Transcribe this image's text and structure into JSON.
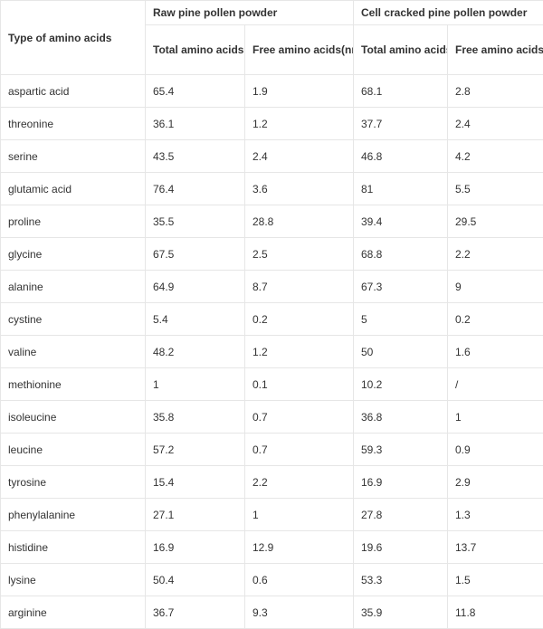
{
  "table": {
    "type_header": "Type of amino acids",
    "groups": [
      "Raw pine pollen powder",
      "Cell cracked pine pollen powder"
    ],
    "subheaders": [
      "Total amino acids(nmol/mg)",
      "Free amino acids(nmol/mg)",
      "Total amino acids(nmol/mg)",
      "Free amino acids(nmol/mg)"
    ],
    "rows": [
      [
        "aspartic acid",
        "65.4",
        "1.9",
        "68.1",
        "2.8"
      ],
      [
        "threonine",
        "36.1",
        "1.2",
        "37.7",
        "2.4"
      ],
      [
        "serine",
        "43.5",
        "2.4",
        "46.8",
        "4.2"
      ],
      [
        "glutamic acid",
        "76.4",
        "3.6",
        "81",
        "5.5"
      ],
      [
        "proline",
        "35.5",
        "28.8",
        "39.4",
        "29.5"
      ],
      [
        "glycine",
        "67.5",
        "2.5",
        "68.8",
        "2.2"
      ],
      [
        "alanine",
        "64.9",
        "8.7",
        "67.3",
        "9"
      ],
      [
        "cystine",
        "5.4",
        "0.2",
        "5",
        "0.2"
      ],
      [
        "valine",
        "48.2",
        "1.2",
        "50",
        "1.6"
      ],
      [
        "methionine",
        "1",
        "0.1",
        "10.2",
        "/"
      ],
      [
        "isoleucine",
        "35.8",
        "0.7",
        "36.8",
        "1"
      ],
      [
        "leucine",
        "57.2",
        "0.7",
        "59.3",
        "0.9"
      ],
      [
        "tyrosine",
        "15.4",
        "2.2",
        "16.9",
        "2.9"
      ],
      [
        "phenylalanine",
        "27.1",
        "1",
        "27.8",
        "1.3"
      ],
      [
        "histidine",
        "16.9",
        "12.9",
        "19.6",
        "13.7"
      ],
      [
        "lysine",
        "50.4",
        "0.6",
        "53.3",
        "1.5"
      ],
      [
        "arginine",
        "36.7",
        "9.3",
        "35.9",
        "11.8"
      ]
    ]
  }
}
